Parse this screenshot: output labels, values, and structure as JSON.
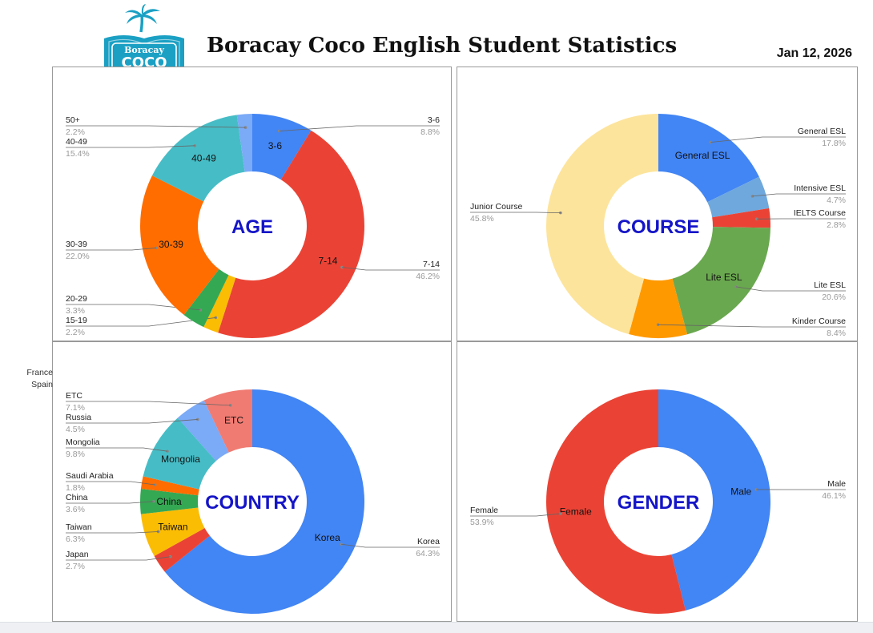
{
  "header": {
    "title": "Boracay Coco English Student Statistics",
    "date": "Jan 12, 2026",
    "logo_text_top": "Boracay",
    "logo_text_main": "COCO"
  },
  "side_labels": [
    "France",
    "Spain"
  ],
  "colors": {
    "blue": "#4285f4",
    "red": "#ea4335",
    "yellow": "#fbbc04",
    "green": "#34a853",
    "orange": "#ff6d01",
    "teal": "#46bdc6",
    "light_blue": "#7baaf7",
    "salmon": "#f07b72",
    "light_orange": "#fcd04f",
    "pale_yellow": "#fde49c",
    "olive_green": "#6aa84f",
    "amber": "#ff9900",
    "sky_blue": "#6fa8dc",
    "logo_teal": "#1ba0c4",
    "center_title": "#1515c8"
  },
  "chart_data": [
    {
      "type": "pie",
      "center_label": "AGE",
      "slices": [
        {
          "label": "3-6",
          "value": 8.8,
          "pct_text": "8.8%",
          "color": "#4285f4",
          "inner": true
        },
        {
          "label": "7-14",
          "value": 46.2,
          "pct_text": "46.2%",
          "color": "#ea4335",
          "inner": true
        },
        {
          "label": "15-19",
          "value": 2.2,
          "pct_text": "2.2%",
          "color": "#fbbc04",
          "inner": false
        },
        {
          "label": "20-29",
          "value": 3.3,
          "pct_text": "3.3%",
          "color": "#34a853",
          "inner": false
        },
        {
          "label": "30-39",
          "value": 22.0,
          "pct_text": "22.0%",
          "color": "#ff6d01",
          "inner": true
        },
        {
          "label": "40-49",
          "value": 15.4,
          "pct_text": "15.4%",
          "color": "#46bdc6",
          "inner": true
        },
        {
          "label": "50+",
          "value": 2.2,
          "pct_text": "2.2%",
          "color": "#7baaf7",
          "inner": false
        }
      ]
    },
    {
      "type": "pie",
      "center_label": "COURSE",
      "slices": [
        {
          "label": "General ESL",
          "value": 17.8,
          "pct_text": "17.8%",
          "color": "#4285f4",
          "inner": true
        },
        {
          "label": "Intensive ESL",
          "value": 4.7,
          "pct_text": "4.7%",
          "color": "#6fa8dc",
          "inner": false
        },
        {
          "label": "IELTS Course",
          "value": 2.8,
          "pct_text": "2.8%",
          "color": "#ea4335",
          "inner": false
        },
        {
          "label": "Lite ESL",
          "value": 20.6,
          "pct_text": "20.6%",
          "color": "#6aa84f",
          "inner": true
        },
        {
          "label": "Kinder Course",
          "value": 8.4,
          "pct_text": "8.4%",
          "color": "#ff9900",
          "inner": false
        },
        {
          "label": "Junior Course",
          "value": 45.8,
          "pct_text": "45.8%",
          "color": "#fde49c",
          "inner": false
        }
      ]
    },
    {
      "type": "pie",
      "center_label": "COUNTRY",
      "slices": [
        {
          "label": "Korea",
          "value": 64.3,
          "pct_text": "64.3%",
          "color": "#4285f4",
          "inner": true
        },
        {
          "label": "Japan",
          "value": 2.7,
          "pct_text": "2.7%",
          "color": "#ea4335",
          "inner": false
        },
        {
          "label": "Taiwan",
          "value": 6.3,
          "pct_text": "6.3%",
          "color": "#fbbc04",
          "inner": true
        },
        {
          "label": "China",
          "value": 3.6,
          "pct_text": "3.6%",
          "color": "#34a853",
          "inner": true
        },
        {
          "label": "Saudi Arabia",
          "value": 1.8,
          "pct_text": "1.8%",
          "color": "#ff6d01",
          "inner": false
        },
        {
          "label": "Mongolia",
          "value": 9.8,
          "pct_text": "9.8%",
          "color": "#46bdc6",
          "inner": true
        },
        {
          "label": "Russia",
          "value": 4.5,
          "pct_text": "4.5%",
          "color": "#7baaf7",
          "inner": false
        },
        {
          "label": "ETC",
          "value": 7.1,
          "pct_text": "7.1%",
          "color": "#f07b72",
          "inner": true
        }
      ]
    },
    {
      "type": "pie",
      "center_label": "GENDER",
      "slices": [
        {
          "label": "Male",
          "value": 46.1,
          "pct_text": "46.1%",
          "color": "#4285f4",
          "inner": true
        },
        {
          "label": "Female",
          "value": 53.9,
          "pct_text": "53.9%",
          "color": "#ea4335",
          "inner": true
        }
      ]
    }
  ]
}
